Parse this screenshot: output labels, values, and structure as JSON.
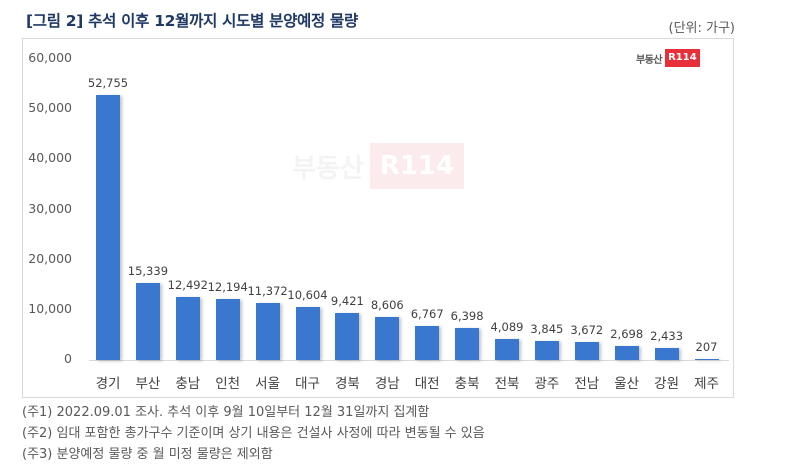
{
  "header": {
    "title": "[그림 2] 추석 이후 12월까지 시도별 분양예정 물량",
    "unit": "(단위: 가구)"
  },
  "logo": {
    "text": "부동산",
    "badge": "R114",
    "badge_color": "#e8303a"
  },
  "watermark": {
    "text": "부동산",
    "badge": "R114"
  },
  "colors": {
    "bar": "#3a78cf",
    "title": "#1f3864",
    "logo_red": "#e8303a"
  },
  "chart_data": {
    "type": "bar",
    "title": "[그림 2] 추석 이후 12월까지 시도별 분양예정 물량",
    "subtitle": "(단위: 가구)",
    "xlabel": "",
    "ylabel": "",
    "ylim": [
      0,
      60000
    ],
    "yticks": [
      0,
      10000,
      20000,
      30000,
      40000,
      50000,
      60000
    ],
    "ytick_labels": [
      "0",
      "10,000",
      "20,000",
      "30,000",
      "40,000",
      "50,000",
      "60,000"
    ],
    "grid": false,
    "legend": null,
    "categories": [
      "경기",
      "부산",
      "충남",
      "인천",
      "서울",
      "대구",
      "경북",
      "경남",
      "대전",
      "충북",
      "전북",
      "광주",
      "전남",
      "울산",
      "강원",
      "제주"
    ],
    "values": [
      52755,
      15339,
      12492,
      12194,
      11372,
      10604,
      9421,
      8606,
      6767,
      6398,
      4089,
      3845,
      3672,
      2698,
      2433,
      207
    ],
    "value_labels": [
      "52,755",
      "15,339",
      "12,492",
      "12,194",
      "11,372",
      "10,604",
      "9,421",
      "8,606",
      "6,767",
      "6,398",
      "4,089",
      "3,845",
      "3,672",
      "2,698",
      "2,433",
      "207"
    ]
  },
  "notes": [
    "(주1) 2022.09.01 조사. 추석 이후 9월 10일부터 12월 31일까지 집계함",
    "(주2) 임대 포함한 총가구수 기준이며 상기 내용은 건설사 사정에 따라 변동될 수 있음",
    "(주3) 분양예정 물량 중 월 미정 물량은 제외함"
  ]
}
